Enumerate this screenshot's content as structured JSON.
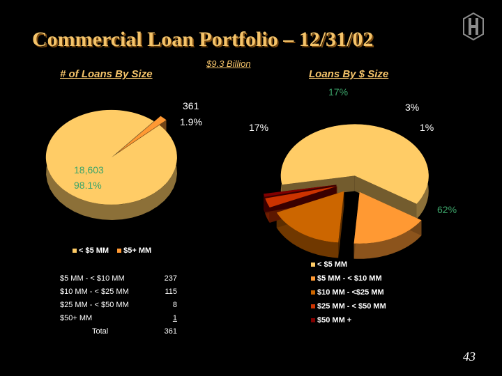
{
  "title": "Commercial Loan Portfolio – 12/31/02",
  "subtitle": "$9.3 Billion",
  "page_number": "43",
  "colors": {
    "accent": "#f5c46a",
    "green_label": "#3ca56a"
  },
  "chart_data": [
    {
      "type": "pie",
      "title": "# of Loans By Size",
      "categories": [
        "< $5 MM",
        "$5+ MM"
      ],
      "values": [
        18603,
        361
      ],
      "percent_labels": [
        "98.1%",
        "1.9%"
      ],
      "count_labels": [
        "18,603",
        "361"
      ],
      "colors": [
        "#ffcc66",
        "#ff9933"
      ],
      "legend_position": "bottom"
    },
    {
      "type": "pie",
      "title": "Loans By $ Size",
      "categories": [
        "< $5 MM",
        "$5 MM - < $10 MM",
        "$10 MM - <$25 MM",
        "$25 MM - < $50 MM",
        "$50 MM +"
      ],
      "values": [
        62,
        17,
        17,
        3,
        1
      ],
      "percent_labels": [
        "62%",
        "17%",
        "17%",
        "3%",
        "1%"
      ],
      "colors": [
        "#ffcc66",
        "#ff9933",
        "#cc6600",
        "#cc3300",
        "#800000"
      ],
      "legend_position": "bottom"
    }
  ],
  "breakdown_table": {
    "rows": [
      {
        "label": "$5 MM - < $10 MM",
        "value": "237"
      },
      {
        "label": "$10 MM - < $25 MM",
        "value": "115"
      },
      {
        "label": "$25 MM - < $50 MM",
        "value": "8"
      },
      {
        "label": "$50+ MM",
        "value": "1"
      }
    ],
    "total_label": "Total",
    "total_value": "361"
  }
}
